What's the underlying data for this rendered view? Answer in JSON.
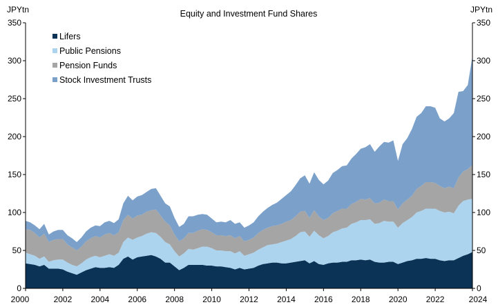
{
  "chart_data": {
    "type": "area",
    "stacked": true,
    "title": "Equity and Investment Fund Shares",
    "ylabel_left": "JPYtn",
    "ylabel_right": "JPYtn",
    "ylim": [
      0,
      350
    ],
    "yticks": [
      0,
      50,
      100,
      150,
      200,
      250,
      300,
      350
    ],
    "xlim": [
      2000.0,
      2024.0
    ],
    "xticks": [
      2000,
      2002,
      2004,
      2006,
      2008,
      2010,
      2012,
      2014,
      2016,
      2018,
      2020,
      2022,
      2024
    ],
    "xtick_labels": [
      "2000",
      "2002",
      "2004",
      "2006",
      "2008",
      "2010",
      "2012",
      "2014",
      "2016",
      "2018",
      "2020",
      "2022",
      "2024"
    ],
    "grid": false,
    "legend_position": "top-left",
    "x": [
      2000.0,
      2000.25,
      2000.5,
      2000.75,
      2001.0,
      2001.25,
      2001.5,
      2001.75,
      2002.0,
      2002.25,
      2002.5,
      2002.75,
      2003.0,
      2003.25,
      2003.5,
      2003.75,
      2004.0,
      2004.25,
      2004.5,
      2004.75,
      2005.0,
      2005.25,
      2005.5,
      2005.75,
      2006.0,
      2006.25,
      2006.5,
      2006.75,
      2007.0,
      2007.25,
      2007.5,
      2007.75,
      2008.0,
      2008.25,
      2008.5,
      2008.75,
      2009.0,
      2009.25,
      2009.5,
      2009.75,
      2010.0,
      2010.25,
      2010.5,
      2010.75,
      2011.0,
      2011.25,
      2011.5,
      2011.75,
      2012.0,
      2012.25,
      2012.5,
      2012.75,
      2013.0,
      2013.25,
      2013.5,
      2013.75,
      2014.0,
      2014.25,
      2014.5,
      2014.75,
      2015.0,
      2015.25,
      2015.5,
      2015.75,
      2016.0,
      2016.25,
      2016.5,
      2016.75,
      2017.0,
      2017.25,
      2017.5,
      2017.75,
      2018.0,
      2018.25,
      2018.5,
      2018.75,
      2019.0,
      2019.25,
      2019.5,
      2019.75,
      2020.0,
      2020.25,
      2020.5,
      2020.75,
      2021.0,
      2021.25,
      2021.5,
      2021.75,
      2022.0,
      2022.25,
      2022.5,
      2022.75,
      2023.0,
      2023.25,
      2023.5,
      2023.75,
      2024.0
    ],
    "series": [
      {
        "name": "Lifers",
        "color": "#0b3356",
        "values": [
          33,
          32,
          31,
          29,
          31,
          26,
          26,
          26,
          25,
          22,
          20,
          18,
          21,
          24,
          26,
          28,
          27,
          27,
          28,
          27,
          31,
          39,
          42,
          38,
          41,
          42,
          43,
          44,
          42,
          39,
          34,
          34,
          29,
          24,
          27,
          31,
          31,
          31,
          31,
          30,
          30,
          29,
          29,
          28,
          27,
          25,
          27,
          25,
          26,
          27,
          30,
          32,
          33,
          34,
          34,
          33,
          33,
          34,
          35,
          36,
          37,
          33,
          36,
          32,
          31,
          33,
          34,
          34,
          35,
          35,
          37,
          37,
          38,
          37,
          38,
          35,
          34,
          34,
          35,
          35,
          32,
          34,
          36,
          37,
          39,
          39,
          40,
          39,
          39,
          37,
          36,
          37,
          37,
          40,
          43,
          45,
          48
        ]
      },
      {
        "name": "Public Pensions",
        "color": "#acd4ef",
        "values": [
          14,
          13,
          12,
          10,
          11,
          9,
          11,
          12,
          13,
          12,
          11,
          11,
          12,
          14,
          15,
          15,
          14,
          16,
          17,
          16,
          16,
          22,
          25,
          26,
          26,
          27,
          29,
          30,
          31,
          29,
          27,
          24,
          20,
          18,
          19,
          21,
          20,
          22,
          24,
          25,
          23,
          21,
          21,
          21,
          22,
          21,
          22,
          18,
          19,
          20,
          21,
          22,
          24,
          24,
          25,
          28,
          30,
          31,
          34,
          38,
          38,
          35,
          40,
          38,
          35,
          36,
          40,
          42,
          44,
          45,
          48,
          50,
          52,
          53,
          53,
          50,
          52,
          55,
          53,
          53,
          48,
          52,
          54,
          57,
          61,
          63,
          65,
          66,
          66,
          65,
          64,
          64,
          62,
          69,
          72,
          72,
          70
        ]
      },
      {
        "name": "Pension Funds",
        "color": "#a5a5a5",
        "values": [
          31,
          32,
          30,
          28,
          30,
          26,
          27,
          27,
          27,
          24,
          23,
          21,
          22,
          24,
          25,
          26,
          26,
          28,
          28,
          27,
          27,
          29,
          30,
          28,
          29,
          28,
          29,
          29,
          31,
          28,
          27,
          25,
          22,
          20,
          20,
          21,
          22,
          23,
          23,
          22,
          21,
          20,
          20,
          20,
          21,
          20,
          20,
          19,
          19,
          20,
          22,
          23,
          23,
          24,
          24,
          24,
          25,
          25,
          26,
          27,
          27,
          25,
          27,
          25,
          24,
          24,
          25,
          26,
          26,
          25,
          26,
          27,
          28,
          27,
          28,
          27,
          27,
          28,
          27,
          27,
          24,
          26,
          27,
          28,
          31,
          33,
          35,
          35,
          34,
          33,
          32,
          33,
          33,
          37,
          39,
          40,
          45
        ]
      },
      {
        "name": "Stock Investment Trusts",
        "color": "#7ba1cb",
        "values": [
          11,
          10,
          10,
          11,
          13,
          10,
          11,
          12,
          12,
          12,
          12,
          11,
          12,
          13,
          14,
          14,
          15,
          16,
          16,
          16,
          17,
          22,
          25,
          24,
          25,
          26,
          26,
          28,
          28,
          26,
          24,
          25,
          22,
          19,
          19,
          22,
          22,
          21,
          20,
          20,
          18,
          17,
          18,
          18,
          20,
          19,
          18,
          18,
          19,
          20,
          22,
          24,
          26,
          28,
          30,
          33,
          35,
          38,
          41,
          44,
          47,
          45,
          50,
          48,
          47,
          49,
          53,
          54,
          56,
          57,
          60,
          63,
          66,
          69,
          71,
          68,
          74,
          76,
          77,
          80,
          64,
          78,
          81,
          88,
          95,
          96,
          100,
          100,
          99,
          89,
          88,
          90,
          99,
          113,
          106,
          111,
          143
        ]
      }
    ]
  }
}
